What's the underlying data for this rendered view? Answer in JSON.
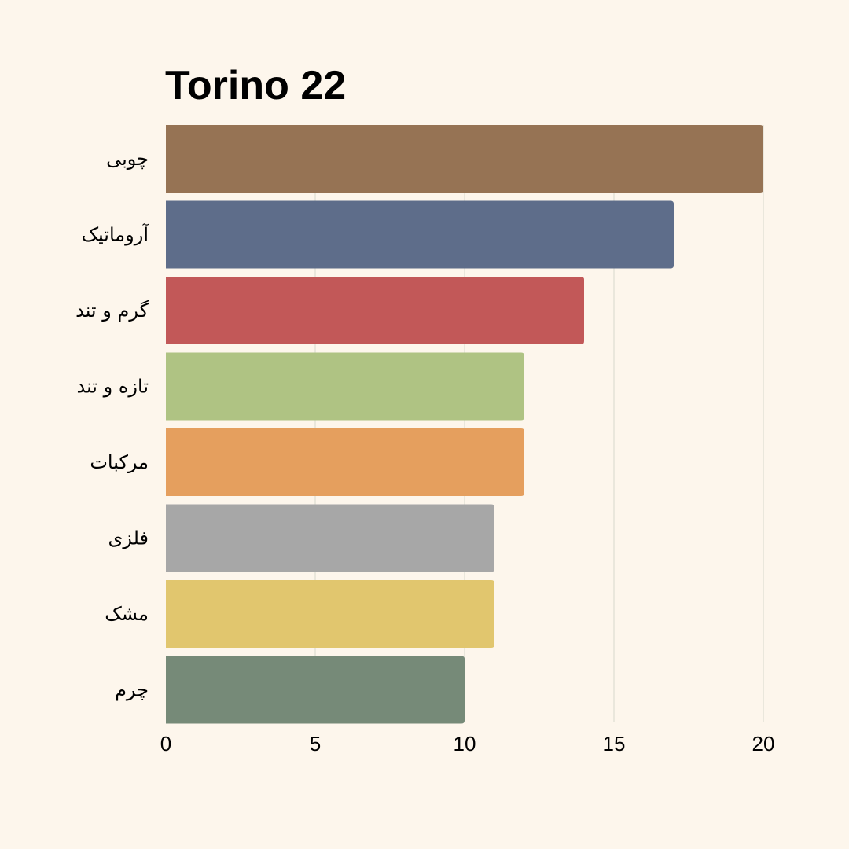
{
  "chart_data": {
    "type": "bar",
    "orientation": "horizontal",
    "title": "Torino 22",
    "xlabel": "",
    "ylabel": "",
    "categories": [
      "چوبی",
      "آروماتیک",
      "گرم و تند",
      "تازه و تند",
      "مرکبات",
      "فلزی",
      "مشک",
      "چرم"
    ],
    "values": [
      20,
      17,
      14,
      12,
      12,
      11,
      11,
      10
    ],
    "colors": [
      "#967354",
      "#5e6d8a",
      "#c25858",
      "#afc383",
      "#e59f5e",
      "#a7a7a7",
      "#e1c66e",
      "#768a78"
    ],
    "xlim": [
      0,
      20
    ],
    "xticks": [
      "0",
      "5",
      "10",
      "15",
      "20"
    ],
    "grid": "vertical",
    "legend": "none"
  }
}
